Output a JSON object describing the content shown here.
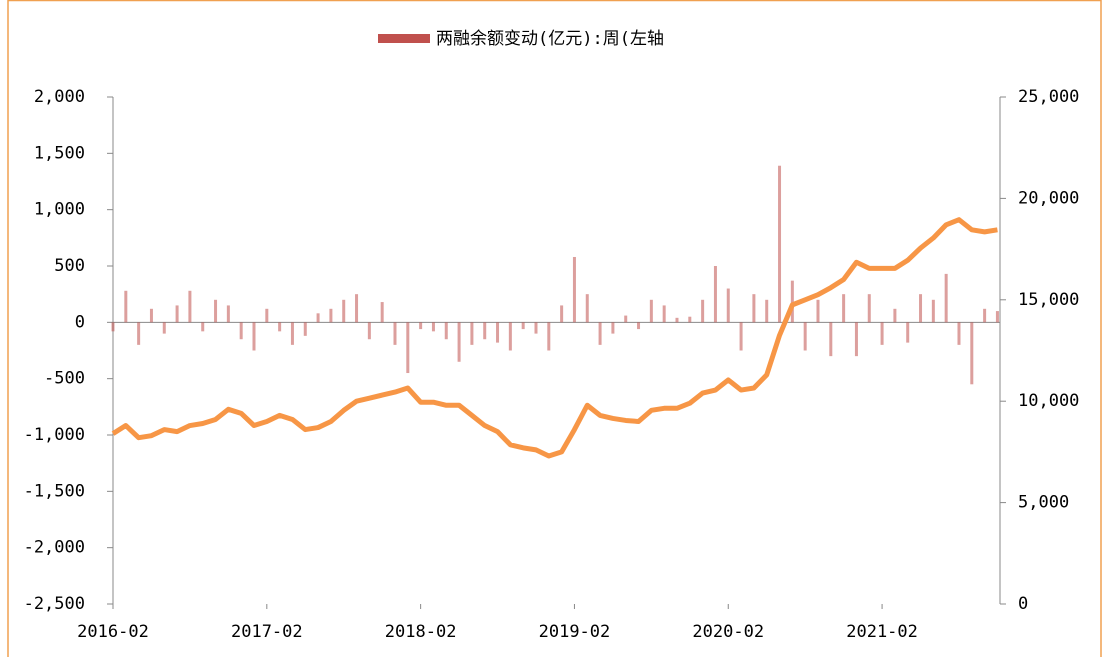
{
  "chart_data": {
    "type": "bar_line",
    "categories": [
      "2016-02",
      null,
      null,
      null,
      null,
      null,
      null,
      null,
      null,
      null,
      null,
      null,
      "2017-02",
      null,
      null,
      null,
      null,
      null,
      null,
      null,
      null,
      null,
      null,
      null,
      "2018-02",
      null,
      null,
      null,
      null,
      null,
      null,
      null,
      null,
      null,
      null,
      null,
      "2019-02",
      null,
      null,
      null,
      null,
      null,
      null,
      null,
      null,
      null,
      null,
      null,
      "2020-02",
      null,
      null,
      null,
      null,
      null,
      null,
      null,
      null,
      null,
      null,
      null,
      "2021-02",
      null,
      null,
      null,
      null,
      null,
      null,
      null,
      null,
      null
    ],
    "series": [
      {
        "name": "两融余额变动(亿元):周(左轴",
        "color": "#c0504d",
        "kind": "bar",
        "values": [
          -80,
          280,
          -200,
          120,
          -100,
          150,
          280,
          -80,
          200,
          150,
          -150,
          -250,
          120,
          -80,
          -200,
          -120,
          80,
          120,
          200,
          250,
          -150,
          180,
          -200,
          -450,
          -60,
          -80,
          -150,
          -350,
          -200,
          -150,
          -180,
          -250,
          -60,
          -100,
          -250,
          150,
          580,
          250,
          -200,
          -100,
          60,
          -60,
          200,
          150,
          40,
          50,
          200,
          500,
          300,
          -250,
          250,
          200,
          1390,
          370,
          -250,
          200,
          -300,
          250,
          -300,
          250,
          -200,
          120,
          -180,
          250,
          200,
          430,
          -200,
          -550,
          120,
          100
        ]
      },
      {
        "color": "#f79646",
        "kind": "line",
        "axis": "y2",
        "values": [
          8400,
          8800,
          8200,
          8300,
          8600,
          8500,
          8800,
          8900,
          9100,
          9600,
          9400,
          8800,
          9000,
          9300,
          9100,
          8600,
          8700,
          9000,
          9550,
          10000,
          10150,
          10300,
          10450,
          10650,
          9950,
          9950,
          9800,
          9800,
          9300,
          8800,
          8500,
          7850,
          7700,
          7600,
          7300,
          7500,
          8600,
          9800,
          9300,
          9150,
          9050,
          9000,
          9550,
          9650,
          9650,
          9900,
          10400,
          10550,
          11050,
          10550,
          10650,
          11300,
          13250,
          14750,
          15000,
          15250,
          15600,
          16000,
          16850,
          16550,
          16550,
          16550,
          16950,
          17550,
          18050,
          18700,
          18950,
          18450,
          18350,
          18450
        ]
      }
    ],
    "ylim": [
      -2500,
      2000
    ],
    "yticks": [
      {
        "value": -2500,
        "label": "-2,500"
      },
      {
        "value": -2000,
        "label": "-2,000"
      },
      {
        "value": -1500,
        "label": "-1,500"
      },
      {
        "value": -1000,
        "label": "-1,000"
      },
      {
        "value": -500,
        "label": "-500"
      },
      0,
      500,
      {
        "value": 1000,
        "label": "1,000"
      },
      {
        "value": 1500,
        "label": "1,500"
      },
      {
        "value": 2000,
        "label": "2,000"
      }
    ],
    "y2lim": [
      0,
      25000
    ],
    "y2ticks": [
      0,
      {
        "value": 5000,
        "label": "5,000"
      },
      {
        "value": 10000,
        "label": "10,000"
      },
      {
        "value": 15000,
        "label": "15,000"
      },
      {
        "value": 20000,
        "label": "20,000"
      },
      {
        "value": 25000,
        "label": "25,000"
      }
    ],
    "legend": "top"
  }
}
